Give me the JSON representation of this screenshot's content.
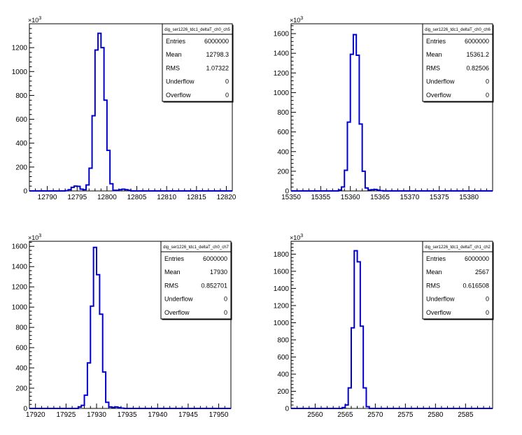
{
  "chart_data": [
    {
      "type": "histogram",
      "stats_title": "dig_ser1226_tdc1_deltaT_ch0_ch5",
      "stats": [
        {
          "label": "Entries",
          "value": "6000000"
        },
        {
          "label": "Mean",
          "value": "12798.3"
        },
        {
          "label": "RMS",
          "value": "1.07322"
        },
        {
          "label": "Underflow",
          "value": "0"
        },
        {
          "label": "Overflow",
          "value": "0"
        }
      ],
      "y_exponent": "10^3",
      "y_exp_base": "×10",
      "y_exp_power": "3",
      "xlim": [
        12787,
        12821
      ],
      "ylim": [
        0,
        1400
      ],
      "xticks": [
        12790,
        12795,
        12800,
        12805,
        12810,
        12815,
        12820
      ],
      "yticks": [
        0,
        200,
        400,
        600,
        800,
        1000,
        1200
      ],
      "bin_width": 0.5,
      "bins": [
        [
          12793.0,
          2
        ],
        [
          12793.5,
          10
        ],
        [
          12794.0,
          30
        ],
        [
          12794.5,
          40
        ],
        [
          12795.0,
          38
        ],
        [
          12795.5,
          15
        ],
        [
          12796.0,
          10
        ],
        [
          12796.5,
          50
        ],
        [
          12797.0,
          190
        ],
        [
          12797.5,
          630
        ],
        [
          12798.0,
          1180
        ],
        [
          12798.5,
          1320
        ],
        [
          12799.0,
          1200
        ],
        [
          12799.5,
          760
        ],
        [
          12800.0,
          340
        ],
        [
          12800.5,
          60
        ],
        [
          12801.0,
          5
        ],
        [
          12801.5,
          5
        ],
        [
          12802.0,
          10
        ],
        [
          12802.5,
          15
        ],
        [
          12803.0,
          10
        ],
        [
          12803.5,
          5
        ]
      ]
    },
    {
      "type": "histogram",
      "stats_title": "dig_ser1226_tdc1_deltaT_ch0_ch6",
      "stats": [
        {
          "label": "Entries",
          "value": "6000000"
        },
        {
          "label": "Mean",
          "value": "15361.2"
        },
        {
          "label": "RMS",
          "value": "0.82506"
        },
        {
          "label": "Underflow",
          "value": "0"
        },
        {
          "label": "Overflow",
          "value": "0"
        }
      ],
      "y_exponent": "10^3",
      "y_exp_base": "×10",
      "y_exp_power": "3",
      "xlim": [
        15350,
        15384
      ],
      "ylim": [
        0,
        1700
      ],
      "xticks": [
        15350,
        15355,
        15360,
        15365,
        15370,
        15375,
        15380
      ],
      "yticks": [
        0,
        200,
        400,
        600,
        800,
        1000,
        1200,
        1400,
        1600
      ],
      "bin_width": 0.5,
      "bins": [
        [
          15358.0,
          10
        ],
        [
          15358.5,
          40
        ],
        [
          15359.0,
          210
        ],
        [
          15359.5,
          700
        ],
        [
          15360.0,
          1390
        ],
        [
          15360.5,
          1590
        ],
        [
          15361.0,
          1380
        ],
        [
          15361.5,
          680
        ],
        [
          15362.0,
          200
        ],
        [
          15362.5,
          30
        ],
        [
          15363.0,
          10
        ],
        [
          15363.5,
          12
        ],
        [
          15364.0,
          15
        ],
        [
          15364.5,
          8
        ],
        [
          15365.0,
          3
        ]
      ]
    },
    {
      "type": "histogram",
      "stats_title": "dig_ser1226_tdc1_deltaT_ch0_ch7",
      "stats": [
        {
          "label": "Entries",
          "value": "6000000"
        },
        {
          "label": "Mean",
          "value": "17930"
        },
        {
          "label": "RMS",
          "value": "0.852701"
        },
        {
          "label": "Underflow",
          "value": "0"
        },
        {
          "label": "Overflow",
          "value": "0"
        }
      ],
      "y_exponent": "10^3",
      "y_exp_base": "×10",
      "y_exp_power": "3",
      "xlim": [
        17919,
        17952
      ],
      "ylim": [
        0,
        1650
      ],
      "xticks": [
        17920,
        17925,
        17930,
        17935,
        17940,
        17945,
        17950
      ],
      "yticks": [
        0,
        200,
        400,
        600,
        800,
        1000,
        1200,
        1400,
        1600
      ],
      "bin_width": 0.5,
      "bins": [
        [
          17927.0,
          15
        ],
        [
          17927.5,
          30
        ],
        [
          17928.0,
          130
        ],
        [
          17928.5,
          450
        ],
        [
          17929.0,
          1010
        ],
        [
          17929.5,
          1590
        ],
        [
          17930.0,
          1320
        ],
        [
          17930.5,
          930
        ],
        [
          17931.0,
          360
        ],
        [
          17931.5,
          60
        ],
        [
          17932.0,
          15
        ],
        [
          17932.5,
          10
        ],
        [
          17933.0,
          15
        ],
        [
          17933.5,
          8
        ],
        [
          17934.0,
          3
        ]
      ]
    },
    {
      "type": "histogram",
      "stats_title": "dig_ser1226_tdc1_deltaT_ch1_ch2",
      "stats": [
        {
          "label": "Entries",
          "value": "6000000"
        },
        {
          "label": "Mean",
          "value": "2567"
        },
        {
          "label": "RMS",
          "value": "0.616508"
        },
        {
          "label": "Underflow",
          "value": "0"
        },
        {
          "label": "Overflow",
          "value": "0"
        }
      ],
      "y_exponent": "10^3",
      "y_exp_base": "×10",
      "y_exp_power": "3",
      "xlim": [
        2556,
        2589.5
      ],
      "ylim": [
        0,
        1950
      ],
      "xticks": [
        2560,
        2565,
        2570,
        2575,
        2580,
        2585
      ],
      "yticks": [
        0,
        200,
        400,
        600,
        800,
        1000,
        1200,
        1400,
        1600,
        1800
      ],
      "bin_width": 0.5,
      "bins": [
        [
          2564.5,
          10
        ],
        [
          2565.0,
          40
        ],
        [
          2565.5,
          240
        ],
        [
          2566.0,
          940
        ],
        [
          2566.5,
          1840
        ],
        [
          2567.0,
          1710
        ],
        [
          2567.5,
          960
        ],
        [
          2568.0,
          240
        ],
        [
          2568.5,
          20
        ]
      ]
    }
  ]
}
